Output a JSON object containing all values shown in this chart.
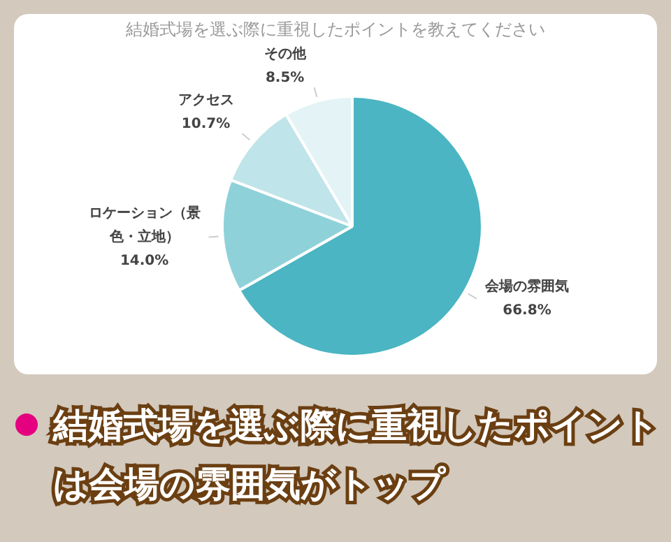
{
  "chart_data": {
    "type": "pie",
    "title": "結婚式場を選ぶ際に重視したポイントを教えてください",
    "subtitle": "結婚式場を選ぶ際に重視したポイントは会場の雰囲気がトップ",
    "categories": [
      "会場の雰囲気",
      "ロケーション（景色・立地）",
      "アクセス",
      "その他"
    ],
    "values": [
      66.8,
      14.0,
      10.7,
      8.5
    ],
    "value_labels": [
      "66.8%",
      "14.0%",
      "10.7%",
      "8.5%"
    ],
    "colors": [
      "#4bb5c3",
      "#8fd1d9",
      "#bfe4e9",
      "#e3f3f6"
    ],
    "legend": false
  }
}
